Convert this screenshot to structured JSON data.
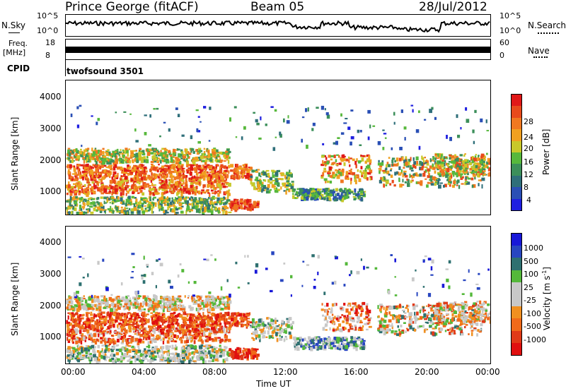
{
  "header": {
    "station": "Prince George (fitACF)",
    "beam": "Beam 05",
    "date": "28/Jul/2012"
  },
  "strip_labels": {
    "nsky": "N.Sky",
    "nsky_ticks": [
      "10^5",
      "10^0"
    ],
    "nsearch": "N.Search",
    "nsearch_ticks": [
      "10^5",
      "10^0"
    ],
    "freq": "Freq.",
    "freq_unit": "[MHz]",
    "freq_ticks": [
      "18",
      "8"
    ],
    "nave": "Nave",
    "nave_ticks": [
      "60",
      "0"
    ],
    "cpid": "CPID",
    "cpid_value": "twofsound 3501"
  },
  "colors": {
    "power_scale": [
      "#1f1fe0",
      "#2a4fb5",
      "#2f6f7a",
      "#3c8f5a",
      "#57b83c",
      "#c8c82a",
      "#f0a020",
      "#f07820",
      "#e84a1c",
      "#e01818"
    ],
    "velocity_scale": [
      "#1818d8",
      "#2846c0",
      "#2e7070",
      "#54b83a",
      "#c8c8c8",
      "#c8c8c8",
      "#f09020",
      "#f06a1a",
      "#e03a18",
      "#e01010"
    ]
  },
  "chart_data": [
    {
      "type": "heatmap",
      "name": "power",
      "ylabel": "Slant Range [km]",
      "ylim": [
        180,
        4500
      ],
      "yticks": [
        "1000",
        "2000",
        "3000",
        "4000"
      ],
      "xlim": [
        "00:00",
        "00:00"
      ],
      "colorbar_label": "Power [dB]",
      "colorbar_ticks": [
        "4",
        "8",
        "12",
        "16",
        "20",
        "24",
        "28"
      ]
    },
    {
      "type": "heatmap",
      "name": "velocity",
      "ylabel": "Slant Range [km]",
      "ylim": [
        180,
        4500
      ],
      "yticks": [
        "1000",
        "2000",
        "3000",
        "4000"
      ],
      "xticks": [
        "00:00",
        "04:00",
        "08:00",
        "12:00",
        "16:00",
        "20:00",
        "00:00"
      ],
      "xlabel": "Time UT",
      "colorbar_label": "Velocity [m s",
      "colorbar_unit_sup": "-1",
      "colorbar_unit_end": "]",
      "colorbar_ticks": [
        "1000",
        "500",
        "100",
        "25",
        "-25",
        "-100",
        "-500",
        "-1000"
      ]
    }
  ]
}
